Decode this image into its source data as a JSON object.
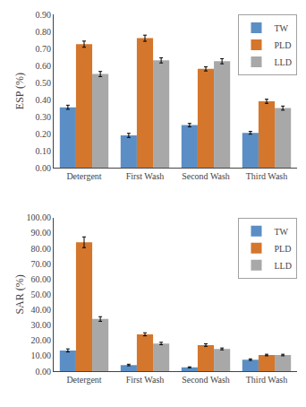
{
  "chart_data": [
    {
      "type": "bar",
      "categories": [
        "Detergent",
        "First Wash",
        "Second Wash",
        "Third Wash"
      ],
      "series": [
        {
          "name": "TW",
          "color": "#5B8EC4",
          "values": [
            0.355,
            0.19,
            0.25,
            0.205
          ],
          "errors": [
            0.012,
            0.012,
            0.01,
            0.008
          ]
        },
        {
          "name": "PLD",
          "color": "#D4762C",
          "values": [
            0.725,
            0.76,
            0.58,
            0.39
          ],
          "errors": [
            0.018,
            0.018,
            0.012,
            0.012
          ]
        },
        {
          "name": "LLD",
          "color": "#A8A8A8",
          "values": [
            0.55,
            0.63,
            0.625,
            0.35
          ],
          "errors": [
            0.015,
            0.015,
            0.015,
            0.012
          ]
        }
      ],
      "ylabel": "ESP (%)",
      "ylim": [
        0,
        0.9
      ],
      "yticks": [
        {
          "value": 0.0,
          "label": "0.00"
        },
        {
          "value": 0.1,
          "label": "0.10"
        },
        {
          "value": 0.2,
          "label": "0.20"
        },
        {
          "value": 0.3,
          "label": "0.30"
        },
        {
          "value": 0.4,
          "label": "0.40"
        },
        {
          "value": 0.5,
          "label": "0.50"
        },
        {
          "value": 0.6,
          "label": "0.60"
        },
        {
          "value": 0.7,
          "label": "0.70"
        },
        {
          "value": 0.8,
          "label": "0.80"
        },
        {
          "value": 0.9,
          "label": "0.90"
        }
      ],
      "grid": false,
      "legend": "upper right"
    },
    {
      "type": "bar",
      "categories": [
        "Detergent",
        "First Wash",
        "Second Wash",
        "Third Wash"
      ],
      "series": [
        {
          "name": "TW",
          "color": "#5B8EC4",
          "values": [
            13.5,
            4.0,
            2.5,
            7.5
          ],
          "errors": [
            1.0,
            0.5,
            0.3,
            0.5
          ]
        },
        {
          "name": "PLD",
          "color": "#D4762C",
          "values": [
            84.0,
            24.0,
            17.0,
            10.5
          ],
          "errors": [
            3.5,
            1.0,
            0.8,
            0.5
          ]
        },
        {
          "name": "LLD",
          "color": "#A8A8A8",
          "values": [
            34.0,
            18.0,
            14.5,
            10.5
          ],
          "errors": [
            1.5,
            0.8,
            0.6,
            0.5
          ]
        }
      ],
      "ylabel": "SAR (%)",
      "ylim": [
        0,
        100
      ],
      "yticks": [
        {
          "value": 0,
          "label": "0.00"
        },
        {
          "value": 10,
          "label": "10.00"
        },
        {
          "value": 20,
          "label": "20.00"
        },
        {
          "value": 30,
          "label": "30.00"
        },
        {
          "value": 40,
          "label": "40.00"
        },
        {
          "value": 50,
          "label": "50.00"
        },
        {
          "value": 60,
          "label": "60.00"
        },
        {
          "value": 70,
          "label": "70.00"
        },
        {
          "value": 80,
          "label": "80.00"
        },
        {
          "value": 90,
          "label": "90.00"
        },
        {
          "value": 100,
          "label": "100.00"
        }
      ],
      "grid": false,
      "legend": "upper right"
    }
  ]
}
